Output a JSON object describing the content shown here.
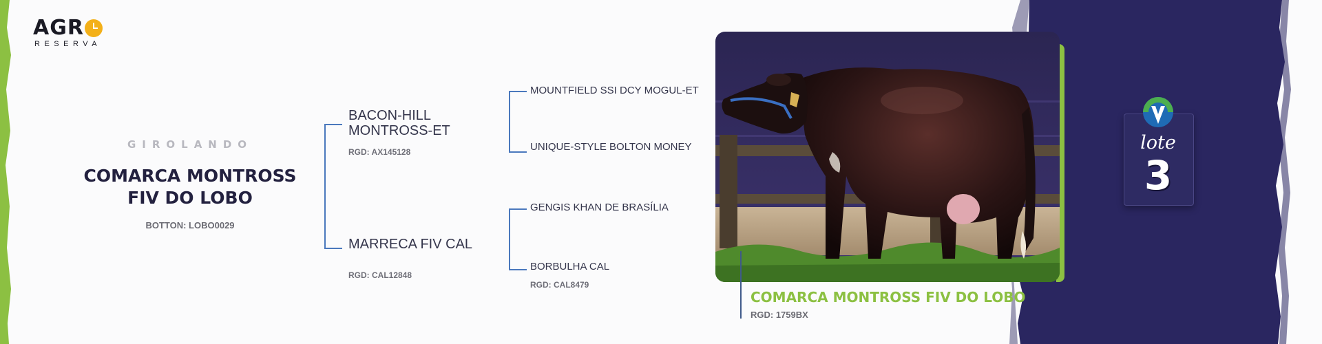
{
  "brand": {
    "name_main": "AGR",
    "name_sub": "RESERVA"
  },
  "animal": {
    "breed": "GIROLANDO",
    "name": "COMARCA MONTROSS FIV DO LOBO",
    "botton": "BOTTON: LOBO0029"
  },
  "pedigree": {
    "sire": {
      "name": "BACON-HILL MONTROSS-ET",
      "rgd": "RGD: AX145128"
    },
    "dam": {
      "name": "MARRECA FIV CAL",
      "rgd": "RGD: CAL12848"
    },
    "sire_sire": {
      "name": "MOUNTFIELD SSI DCY MOGUL-ET"
    },
    "sire_dam": {
      "name": "UNIQUE-STYLE BOLTON MONEY"
    },
    "dam_sire": {
      "name": "GENGIS KHAN DE BRASÍLIA"
    },
    "dam_dam": {
      "name": "BORBULHA CAL",
      "rgd": "RGD: CAL8479"
    }
  },
  "photo": {
    "title": "COMARCA MONTROSS FIV DO LOBO",
    "rgd": "RGD: 1759BX"
  },
  "lote": {
    "label": "lote",
    "number": "3"
  },
  "colors": {
    "accent_green": "#8cc042",
    "purple": "#2a2660",
    "navy_text": "#23213f",
    "bracket_blue": "#4a78bd",
    "logo_yellow": "#f3b019"
  }
}
